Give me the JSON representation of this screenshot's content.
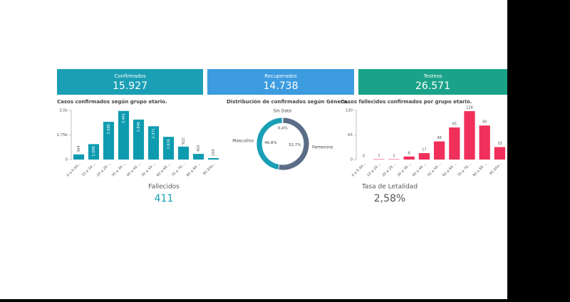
{
  "kpis": [
    {
      "label": "Confirmados",
      "value": "15.927",
      "color": "#1a9fb5"
    },
    {
      "label": "Recuperados",
      "value": "14.738",
      "color": "#3d9be0"
    },
    {
      "label": "Testeos",
      "value": "26.571",
      "color": "#1aa389"
    }
  ],
  "chart_data": [
    {
      "type": "bar",
      "title": "Casos confirmados según grupo etario.",
      "color": "#0e9bb0",
      "categories": [
        "0 a 9 Añ...",
        "10 a 19 ...",
        "20 a 29 ...",
        "30 a 39 ...",
        "40 a 49 ...",
        "50 a 59 ...",
        "60 a 69 ...",
        "70 a 79 ...",
        "80 a 89 ...",
        "90 Año..."
      ],
      "values": [
        364,
        1098,
        2686,
        3461,
        2846,
        2371,
        1616,
        922,
        403,
        104
      ],
      "value_labels": [
        "364",
        "1.098",
        "2.686",
        "3.461",
        "2.846",
        "2.371",
        "1.616",
        "922",
        "403",
        "104"
      ],
      "ylim": [
        0,
        3500
      ],
      "yticks": [
        0,
        {
          "value": 1750,
          "label": "1,75k"
        },
        {
          "value": 3500,
          "label": "3,5k"
        }
      ]
    },
    {
      "type": "donut",
      "title": "Distribución de confirmados según Género.",
      "categories": [
        "Femenino",
        "Masculino",
        "Sin Dato"
      ],
      "values": [
        52.7,
        46.8,
        0.4
      ],
      "value_labels": [
        "52,7%",
        "46,8%",
        "0,4%"
      ],
      "colors": [
        "#5b6c86",
        "#1a9fb5",
        "#b9bec6"
      ]
    },
    {
      "type": "bar",
      "title": "Casos fallecidos confirmados por grupo etario.",
      "color": "#f0305a",
      "categories": [
        "0 a 9 Añ...",
        "10 a 19 ...",
        "20 a 29 ...",
        "30 a 39 ...",
        "40 a 49 ...",
        "50 a 59 ...",
        "60 a 69 ...",
        "70 a 79 ...",
        "80 a 89 ...",
        "90 Año..."
      ],
      "values": [
        0,
        1,
        1,
        8,
        17,
        48,
        85,
        128,
        90,
        33
      ],
      "ylim": [
        0,
        130
      ],
      "yticks": [
        0,
        65,
        130
      ]
    }
  ],
  "summary": [
    {
      "label": "Fallecidos",
      "value": "411",
      "color": "#1a9fb5"
    },
    {
      "label": "Tasa de Letalidad",
      "value": "2,58%",
      "color": "#555"
    }
  ]
}
